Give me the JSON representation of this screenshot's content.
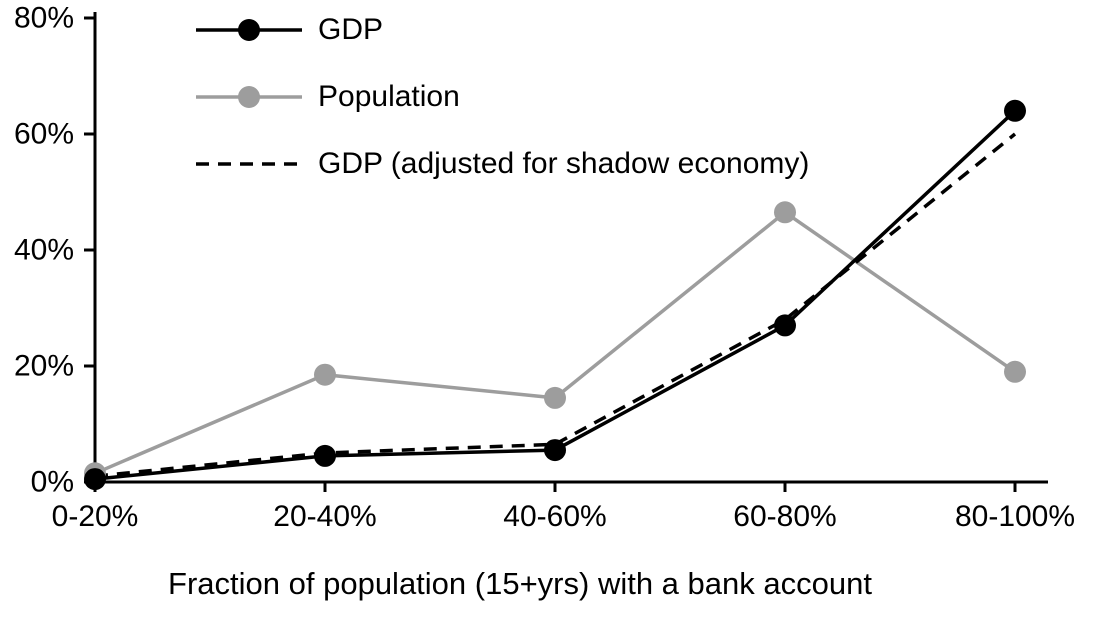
{
  "chart_data": {
    "type": "line",
    "categories": [
      "0-20%",
      "20-40%",
      "40-60%",
      "60-80%",
      "80-100%"
    ],
    "series": [
      {
        "name": "GDP",
        "values": [
          0.5,
          4.5,
          5.5,
          27,
          64
        ],
        "color": "#000000",
        "style": "solid",
        "marker": "circle"
      },
      {
        "name": "Population",
        "values": [
          1.5,
          18.5,
          14.5,
          46.5,
          19
        ],
        "color": "#9d9d9d",
        "style": "solid",
        "marker": "circle"
      },
      {
        "name": "GDP (adjusted for shadow economy)",
        "values": [
          1,
          5,
          6.5,
          28,
          60
        ],
        "color": "#000000",
        "style": "dashed",
        "marker": "none"
      }
    ],
    "title": "",
    "xlabel": "Fraction of population (15+yrs) with a bank account",
    "ylabel": "",
    "ylim": [
      0,
      80
    ],
    "yticks": [
      "0%",
      "20%",
      "40%",
      "60%",
      "80%"
    ],
    "ytick_values": [
      0,
      20,
      40,
      60,
      80
    ],
    "grid": false,
    "legend_position": "top-left",
    "colors": {
      "axis": "#000000",
      "gdp": "#000000",
      "population": "#9d9d9d"
    }
  }
}
